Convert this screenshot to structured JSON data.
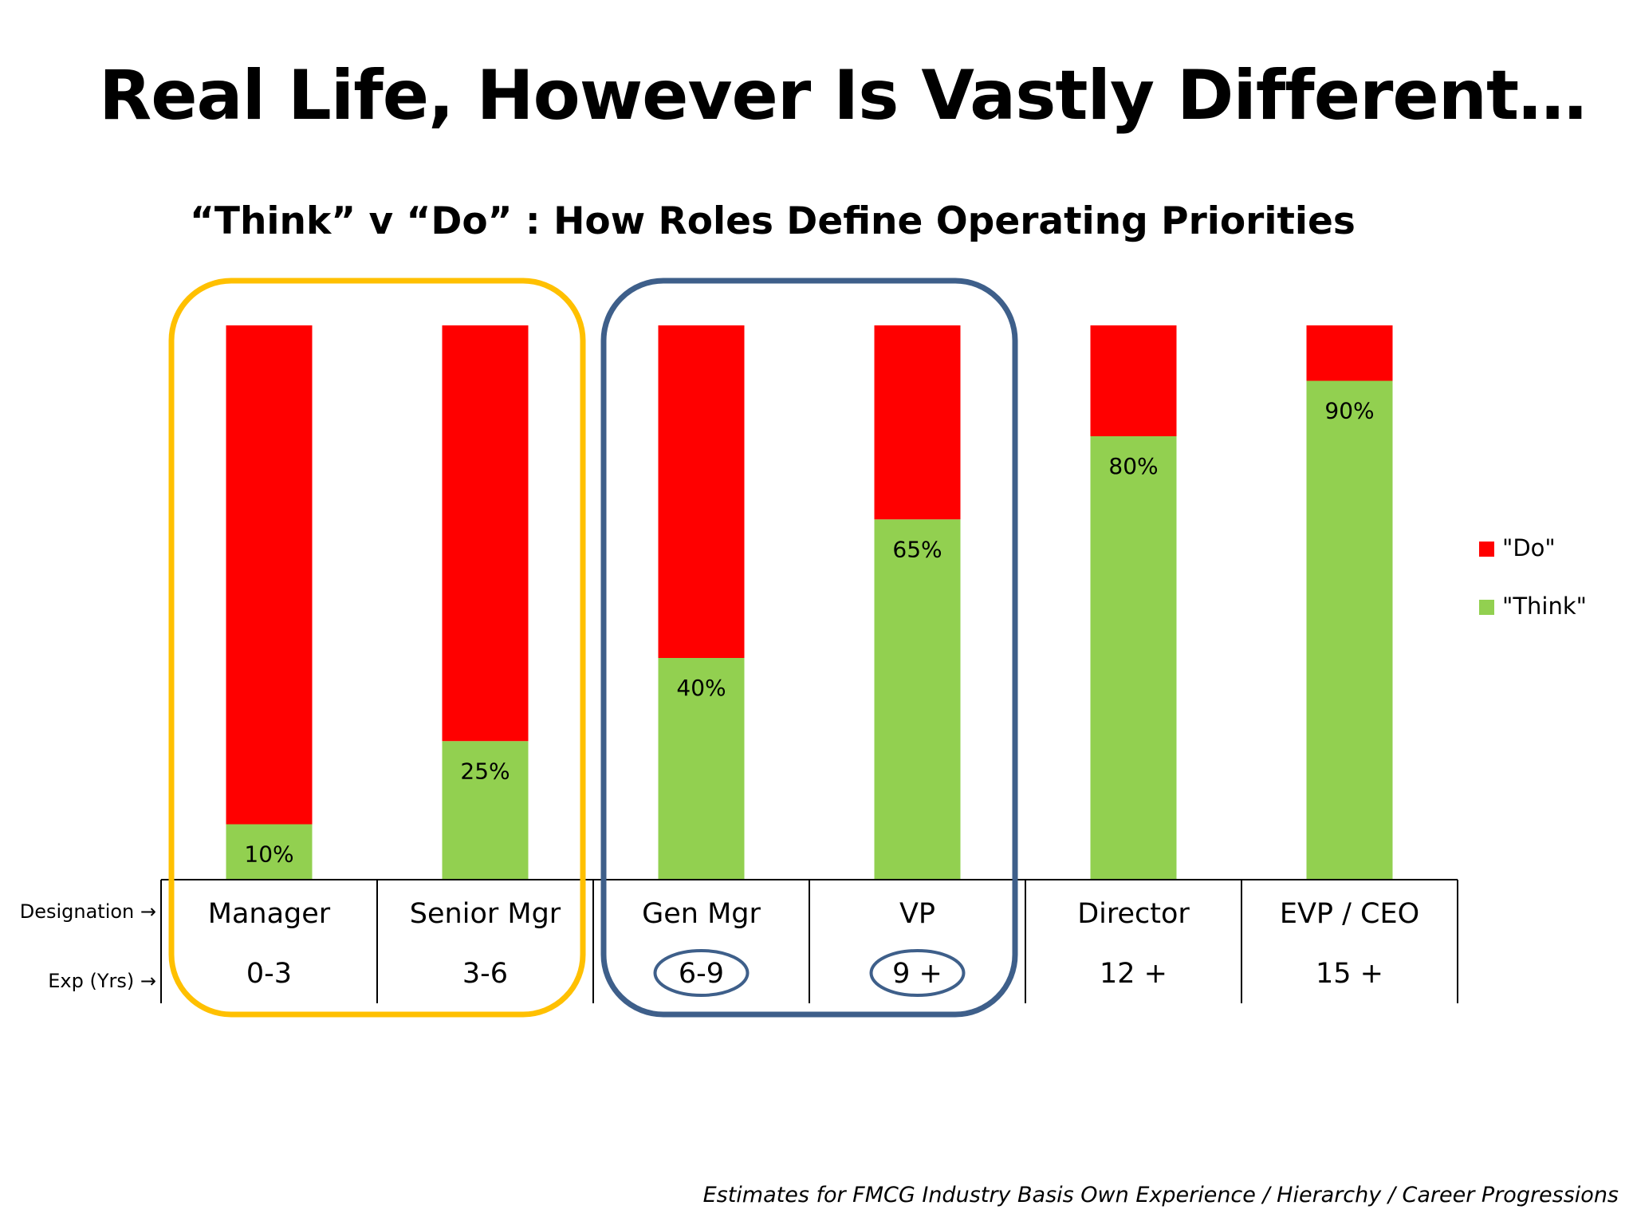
{
  "slide": {
    "title": "Real Life, However Is Vastly Different…",
    "subtitle": "“Think” v “Do” : How Roles Define Operating Priorities",
    "footnote": "Estimates for FMCG Industry Basis Own Experience / Hierarchy / Career Progressions"
  },
  "rows": {
    "designation_label": "Designation →",
    "experience_label": "Exp (Yrs) →"
  },
  "chart_data": {
    "type": "bar",
    "stacked": true,
    "categories": [
      "Manager",
      "Senior Mgr",
      "Gen Mgr",
      "VP",
      "Director",
      "EVP / CEO"
    ],
    "experience": [
      "0-3",
      "3-6",
      "6-9",
      "9 +",
      "12 +",
      "15 +"
    ],
    "series": [
      {
        "name": "\"Think\"",
        "values": [
          10,
          25,
          40,
          65,
          80,
          90
        ],
        "color": "#92d050",
        "labels": [
          "10%",
          "25%",
          "40%",
          "65%",
          "80%",
          "90%"
        ]
      },
      {
        "name": "\"Do\"",
        "values": [
          90,
          75,
          60,
          35,
          20,
          10
        ],
        "color": "#ff0000"
      }
    ],
    "ylim": [
      0,
      100
    ],
    "grid": false,
    "legend": "right",
    "groupings": [
      {
        "categories": [
          "Manager",
          "Senior Mgr"
        ],
        "color": "#ffc000"
      },
      {
        "categories": [
          "Gen Mgr",
          "VP"
        ],
        "color": "#3e5f8a",
        "circled_experience": [
          "6-9",
          "9 +"
        ]
      }
    ]
  }
}
